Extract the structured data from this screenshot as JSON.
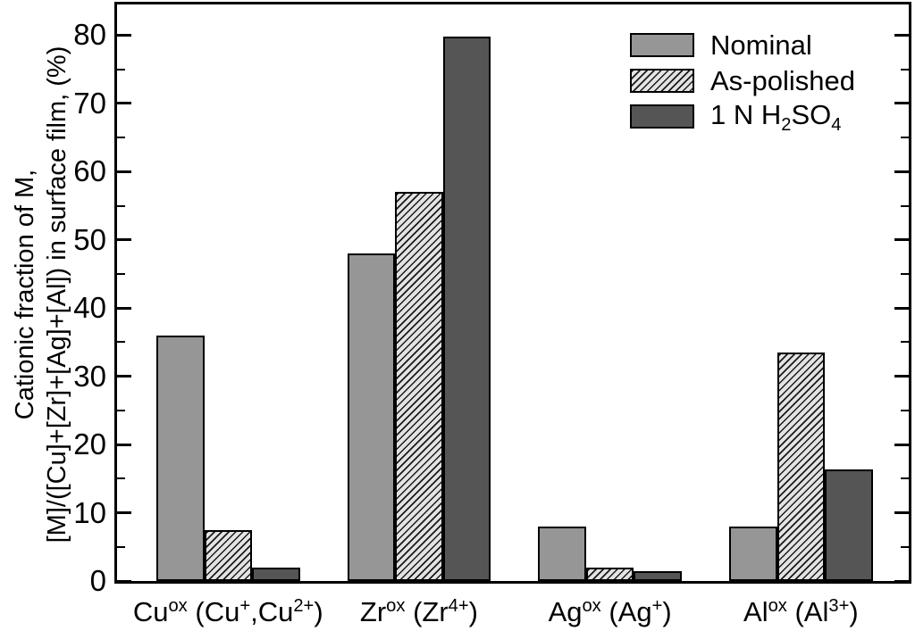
{
  "chart_data": {
    "type": "bar",
    "title": "",
    "ylabel_line1": "Cationic fraction of M,",
    "ylabel_line2": "[M]/([Cu]+[Zr]+[Ag]+[Al]) in surface film, (%)",
    "categories": [
      "Cu^{ox} (Cu^{+},Cu^{2+})",
      "Zr^{ox} (Zr^{4+})",
      "Ag^{ox} (Ag^{+})",
      "Al^{ox} (Al^{3+})"
    ],
    "series": [
      {
        "name": "Nominal",
        "style": "solid-light",
        "values": [
          36,
          48,
          8,
          8
        ]
      },
      {
        "name": "As-polished",
        "style": "hatch",
        "values": [
          7.5,
          57,
          2,
          33.5
        ]
      },
      {
        "name": "1 N H_{2}SO_{4}",
        "style": "solid-dark",
        "values": [
          2,
          79.8,
          1.5,
          16.4
        ]
      }
    ],
    "ylim": [
      0,
      84.5
    ],
    "yticks_major": [
      0,
      10,
      20,
      30,
      40,
      50,
      60,
      70,
      80
    ],
    "yticks_minor": [
      5,
      15,
      25,
      35,
      45,
      55,
      65,
      75
    ],
    "grid": false,
    "legend_position": "top-right",
    "colors": {
      "nominal_fill": "#969696",
      "hatch_background": "#e3e3e3",
      "hatch_line": "#1a1a1a",
      "acid_fill": "#555555",
      "frame_and_text": "#000000",
      "background": "#ffffff"
    }
  }
}
